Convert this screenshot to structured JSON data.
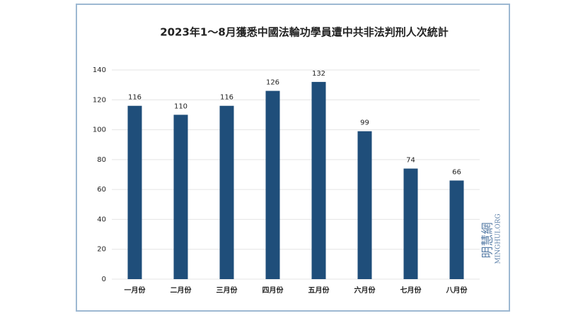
{
  "chart_data": {
    "type": "bar",
    "title": "2023年1～8月獲悉中國法輪功學員遭中共非法判刑人次統計",
    "categories": [
      "一月份",
      "二月份",
      "三月份",
      "四月份",
      "五月份",
      "六月份",
      "七月份",
      "八月份"
    ],
    "values": [
      116,
      110,
      116,
      126,
      132,
      99,
      74,
      66
    ],
    "color": "#1f4e7a",
    "ylim": [
      0,
      140
    ],
    "yticks": [
      0,
      20,
      40,
      60,
      80,
      100,
      120,
      140
    ],
    "grid": true,
    "annotations": [
      "明慧網",
      "MINGHUI.ORG"
    ]
  }
}
